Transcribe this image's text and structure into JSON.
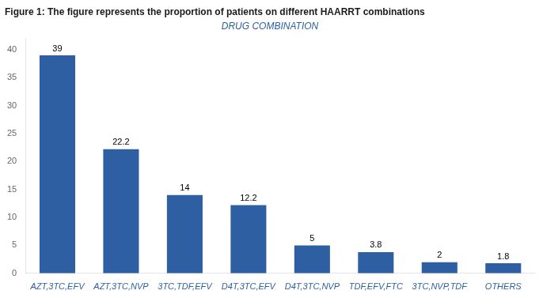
{
  "chart_data": {
    "type": "bar",
    "title": "Figure 1: The figure represents the proportion of patients on different HAARRT combinations",
    "xlabel": "DRUG COMBINATION",
    "categories": [
      "AZT,3TC,EFV",
      "AZT,3TC,NVP",
      "3TC,TDF,EFV",
      "D4T,3TC,EFV",
      "D4T,3TC,NVP",
      "TDF,EFV,FTC",
      "3TC,NVP,TDF",
      "OTHERS"
    ],
    "values": [
      39,
      22.2,
      14,
      12.2,
      5,
      3.8,
      2,
      1.8
    ],
    "color": "#2E5FA3",
    "ylim": [
      0,
      42
    ],
    "yticks": [
      0,
      5,
      10,
      15,
      20,
      25,
      30,
      35,
      40
    ],
    "grid": false,
    "data_labels": true
  }
}
